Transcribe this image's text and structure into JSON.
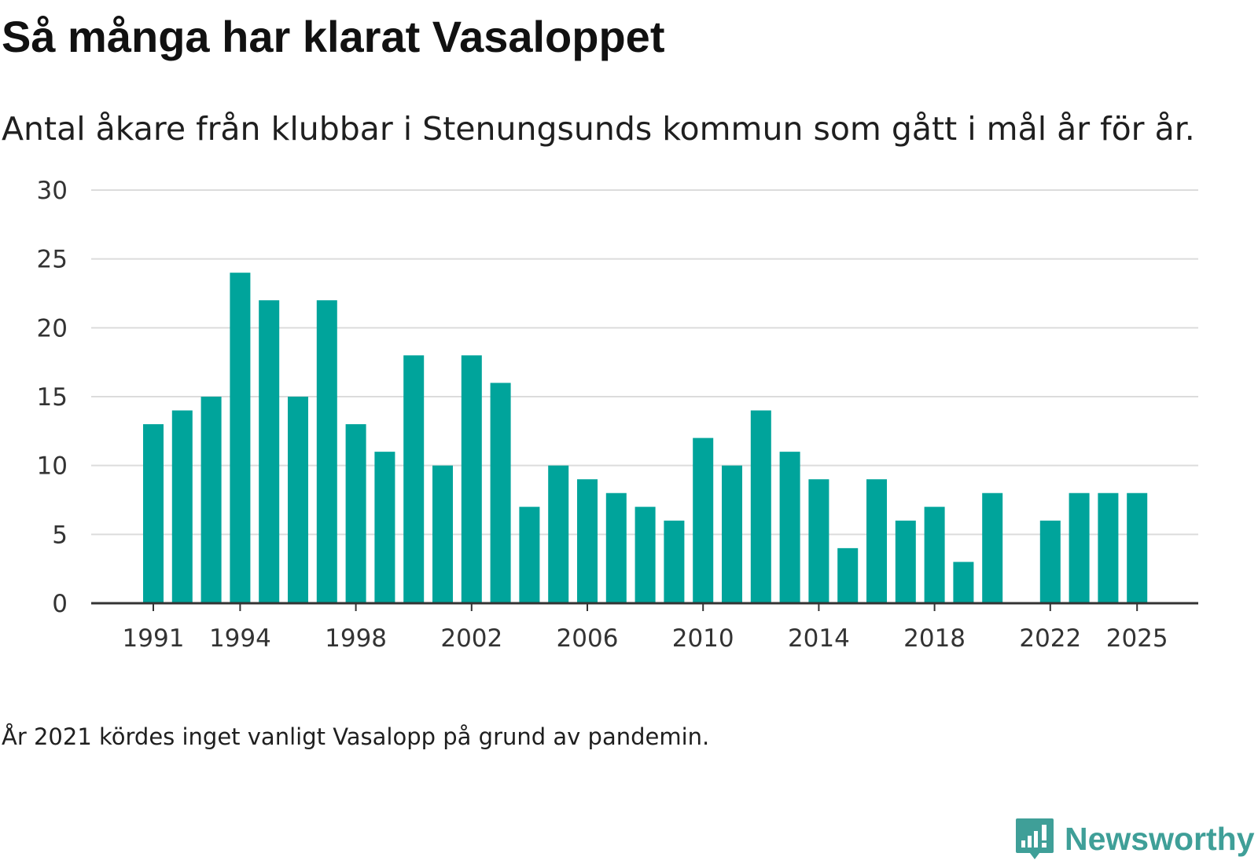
{
  "header": {
    "title": "Så många har klarat Vasaloppet",
    "subtitle": "Antal åkare från klubbar i Stenungsunds kommun som gått i mål år för år."
  },
  "footer": {
    "note": "År 2021 kördes inget vanligt Vasalopp på grund av pandemin.",
    "brand": "Newsworthy"
  },
  "colors": {
    "bar": "#00a49b",
    "grid": "#dcdcdc",
    "axis": "#333333",
    "brand": "#3f9f98"
  },
  "chart_data": {
    "type": "bar",
    "title": "Så många har klarat Vasaloppet",
    "subtitle": "Antal åkare från klubbar i Stenungsunds kommun som gått i mål år för år.",
    "xlabel": "",
    "ylabel": "",
    "ylim": [
      0,
      30
    ],
    "yticks": [
      0,
      5,
      10,
      15,
      20,
      25,
      30
    ],
    "xticks": [
      1991,
      1994,
      1998,
      2002,
      2006,
      2010,
      2014,
      2018,
      2022,
      2025
    ],
    "grid": true,
    "categories": [
      1991,
      1992,
      1993,
      1994,
      1995,
      1996,
      1997,
      1998,
      1999,
      2000,
      2001,
      2002,
      2003,
      2004,
      2005,
      2006,
      2007,
      2008,
      2009,
      2010,
      2011,
      2012,
      2013,
      2014,
      2015,
      2016,
      2017,
      2018,
      2019,
      2020,
      2021,
      2022,
      2023,
      2024,
      2025
    ],
    "values": [
      13,
      14,
      15,
      24,
      22,
      15,
      22,
      13,
      11,
      18,
      10,
      18,
      16,
      7,
      10,
      9,
      8,
      7,
      6,
      12,
      10,
      14,
      11,
      9,
      4,
      9,
      6,
      7,
      3,
      8,
      null,
      6,
      8,
      8,
      8
    ]
  }
}
